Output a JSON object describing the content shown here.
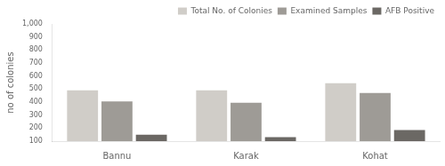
{
  "chart_data": {
    "type": "bar",
    "categories": [
      "Bannu",
      "Karak",
      "Kohat"
    ],
    "series": [
      {
        "name": "Total No. of Colonies",
        "color": "#d0cdc8",
        "values": [
          490,
          490,
          545
        ]
      },
      {
        "name": "Examined Samples",
        "color": "#9e9b96",
        "values": [
          405,
          395,
          470
        ]
      },
      {
        "name": "AFB Positive",
        "color": "#6b6864",
        "values": [
          150,
          130,
          185
        ]
      }
    ],
    "y_label": "no of colonies",
    "ylim": [
      100,
      1000
    ],
    "yticks": [
      100,
      200,
      300,
      400,
      500,
      600,
      700,
      800,
      900,
      {
        "value": 1000,
        "label": "1,000"
      }
    ],
    "grid": false,
    "legend": "upper right"
  }
}
